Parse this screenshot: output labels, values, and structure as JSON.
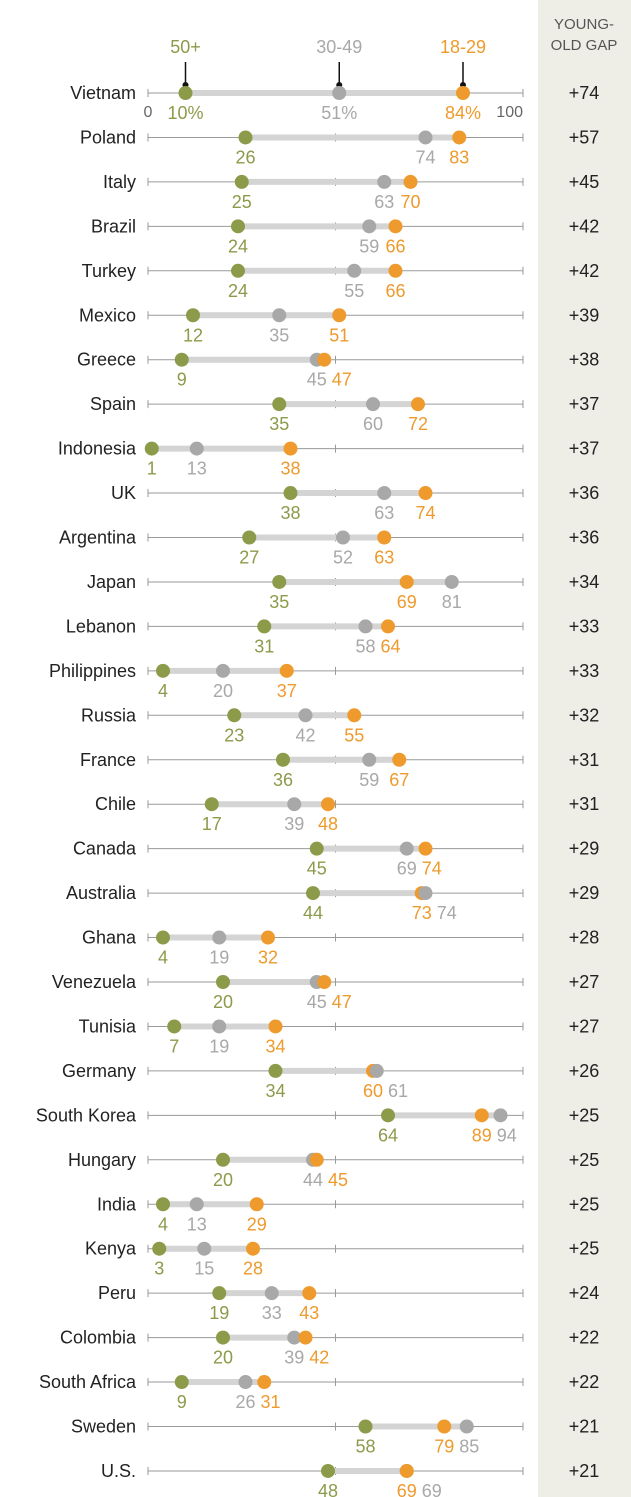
{
  "colors": {
    "old": "#8B9B4A",
    "mid": "#A8A8A8",
    "young": "#EE9A2D",
    "gap_panel": "#EEEDE6",
    "bar": "#D4D4D4",
    "axis": "#9A9A9A"
  },
  "chart_data": {
    "type": "dot",
    "x_range": [
      0,
      100
    ],
    "axis_labels": [
      "0",
      "100"
    ],
    "series": [
      {
        "name": "50+",
        "key": "old"
      },
      {
        "name": "30-49",
        "key": "mid"
      },
      {
        "name": "18-29",
        "key": "young"
      }
    ],
    "gap_header": [
      "YOUNG-",
      "OLD GAP"
    ],
    "rows": [
      {
        "country": "Vietnam",
        "old": 10,
        "mid": 51,
        "young": 84,
        "gap": "+74",
        "old_label": "10%",
        "mid_label": "51%",
        "young_label": "84%"
      },
      {
        "country": "Poland",
        "old": 26,
        "mid": 74,
        "young": 83,
        "gap": "+57"
      },
      {
        "country": "Italy",
        "old": 25,
        "mid": 63,
        "young": 70,
        "gap": "+45"
      },
      {
        "country": "Brazil",
        "old": 24,
        "mid": 59,
        "young": 66,
        "gap": "+42"
      },
      {
        "country": "Turkey",
        "old": 24,
        "mid": 55,
        "young": 66,
        "gap": "+42"
      },
      {
        "country": "Mexico",
        "old": 12,
        "mid": 35,
        "young": 51,
        "gap": "+39"
      },
      {
        "country": "Greece",
        "old": 9,
        "mid": 45,
        "young": 47,
        "gap": "+38"
      },
      {
        "country": "Spain",
        "old": 35,
        "mid": 60,
        "young": 72,
        "gap": "+37"
      },
      {
        "country": "Indonesia",
        "old": 1,
        "mid": 13,
        "young": 38,
        "gap": "+37"
      },
      {
        "country": "UK",
        "old": 38,
        "mid": 63,
        "young": 74,
        "gap": "+36"
      },
      {
        "country": "Argentina",
        "old": 27,
        "mid": 52,
        "young": 63,
        "gap": "+36"
      },
      {
        "country": "Japan",
        "old": 35,
        "mid": 81,
        "young": 69,
        "gap": "+34"
      },
      {
        "country": "Lebanon",
        "old": 31,
        "mid": 58,
        "young": 64,
        "gap": "+33"
      },
      {
        "country": "Philippines",
        "old": 4,
        "mid": 20,
        "young": 37,
        "gap": "+33"
      },
      {
        "country": "Russia",
        "old": 23,
        "mid": 42,
        "young": 55,
        "gap": "+32"
      },
      {
        "country": "France",
        "old": 36,
        "mid": 59,
        "young": 67,
        "gap": "+31"
      },
      {
        "country": "Chile",
        "old": 17,
        "mid": 39,
        "young": 48,
        "gap": "+31"
      },
      {
        "country": "Canada",
        "old": 45,
        "mid": 69,
        "young": 74,
        "gap": "+29"
      },
      {
        "country": "Australia",
        "old": 44,
        "mid": 74,
        "young": 73,
        "gap": "+29"
      },
      {
        "country": "Ghana",
        "old": 4,
        "mid": 19,
        "young": 32,
        "gap": "+28"
      },
      {
        "country": "Venezuela",
        "old": 20,
        "mid": 45,
        "young": 47,
        "gap": "+27"
      },
      {
        "country": "Tunisia",
        "old": 7,
        "mid": 19,
        "young": 34,
        "gap": "+27"
      },
      {
        "country": "Germany",
        "old": 34,
        "mid": 61,
        "young": 60,
        "gap": "+26"
      },
      {
        "country": "South Korea",
        "old": 64,
        "mid": 94,
        "young": 89,
        "gap": "+25"
      },
      {
        "country": "Hungary",
        "old": 20,
        "mid": 44,
        "young": 45,
        "gap": "+25"
      },
      {
        "country": "India",
        "old": 4,
        "mid": 13,
        "young": 29,
        "gap": "+25"
      },
      {
        "country": "Kenya",
        "old": 3,
        "mid": 15,
        "young": 28,
        "gap": "+25"
      },
      {
        "country": "Peru",
        "old": 19,
        "mid": 33,
        "young": 43,
        "gap": "+24"
      },
      {
        "country": "Colombia",
        "old": 20,
        "mid": 39,
        "young": 42,
        "gap": "+22"
      },
      {
        "country": "South Africa",
        "old": 9,
        "mid": 26,
        "young": 31,
        "gap": "+22"
      },
      {
        "country": "Sweden",
        "old": 58,
        "mid": 85,
        "young": 79,
        "gap": "+21"
      },
      {
        "country": "U.S.",
        "old": 48,
        "mid": 69,
        "young": 69,
        "gap": "+21"
      }
    ]
  }
}
